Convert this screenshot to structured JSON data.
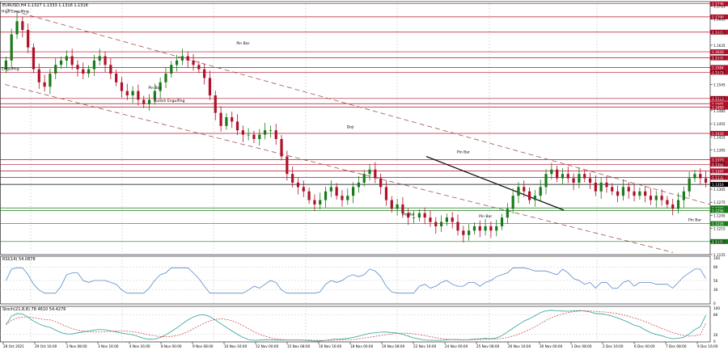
{
  "window": {
    "main_info": "EURUSD,H4  1.1327 1.1333 1.1316 1.1316",
    "rsi_info": "RSI(14) 54.0878",
    "stoch_info": "Stoch(21,8,8) 78.4610 54.4276"
  },
  "chart_data": {
    "type": "candlestick",
    "symbol": "EURUSD",
    "timeframe": "H4",
    "ylim": [
      1.1155,
      1.1735
    ],
    "price_ticks": [
      "1.1725",
      "1.1695",
      "1.1665",
      "1.1635",
      "1.1605",
      "1.1575",
      "1.1545",
      "1.1515",
      "1.1485",
      "1.1455",
      "1.1425",
      "1.1395",
      "1.1365",
      "1.1335",
      "1.1305",
      "1.1275",
      "1.1245",
      "1.1215",
      "1.1185",
      "1.1155"
    ],
    "time_labels": [
      "28 Oct 2021",
      "29 Oct 16:00",
      "2 Nov 08:00",
      "3 Nov 16:00",
      "4 Nov 16:00",
      "8 Nov 00:00",
      "9 Nov 08:00",
      "10 Nov 16:00",
      "12 Nov 00:00",
      "15 Nov 08:00",
      "16 Nov 16:00",
      "18 Nov 00:00",
      "19 Nov 08:00",
      "22 Nov 16:00",
      "24 Nov 00:00",
      "25 Nov 08:00",
      "26 Nov 16:00",
      "30 Nov 00:00",
      "1 Dec 08:00",
      "2 Dec 16:00",
      "6 Dec 00:00",
      "7 Dec 08:00",
      "9 Dec 16:00"
    ],
    "closes": [
      1.16,
      1.166,
      1.169,
      1.167,
      1.163,
      1.158,
      1.155,
      1.154,
      1.157,
      1.159,
      1.16,
      1.161,
      1.159,
      1.158,
      1.157,
      1.158,
      1.16,
      1.161,
      1.159,
      1.157,
      1.155,
      1.153,
      1.152,
      1.153,
      1.151,
      1.15,
      1.151,
      1.153,
      1.155,
      1.157,
      1.159,
      1.16,
      1.161,
      1.16,
      1.159,
      1.158,
      1.156,
      1.152,
      1.148,
      1.145,
      1.147,
      1.146,
      1.144,
      1.143,
      1.143,
      1.142,
      1.143,
      1.144,
      1.144,
      1.142,
      1.138,
      1.134,
      1.132,
      1.131,
      1.13,
      1.128,
      1.127,
      1.128,
      1.13,
      1.131,
      1.129,
      1.128,
      1.129,
      1.131,
      1.132,
      1.134,
      1.135,
      1.133,
      1.131,
      1.128,
      1.126,
      1.127,
      1.125,
      1.124,
      1.124,
      1.125,
      1.124,
      1.123,
      1.122,
      1.123,
      1.124,
      1.123,
      1.121,
      1.12,
      1.121,
      1.122,
      1.121,
      1.122,
      1.121,
      1.122,
      1.124,
      1.126,
      1.129,
      1.131,
      1.13,
      1.128,
      1.129,
      1.131,
      1.134,
      1.135,
      1.133,
      1.134,
      1.133,
      1.132,
      1.134,
      1.133,
      1.132,
      1.13,
      1.132,
      1.131,
      1.13,
      1.129,
      1.131,
      1.13,
      1.129,
      1.13,
      1.129,
      1.128,
      1.129,
      1.128,
      1.127,
      1.126,
      1.128,
      1.13,
      1.133,
      1.134,
      1.133,
      1.132
    ],
    "rsi": {
      "name": "RSI(14)",
      "value": 54.0878,
      "ylim": [
        0,
        100
      ],
      "ticks": [
        "100",
        "80",
        "50",
        "30",
        "0"
      ]
    },
    "stoch": {
      "name": "Stoch(21,8,8)",
      "main": 78.461,
      "signal": 54.4276,
      "ylim": [
        0,
        100
      ],
      "ticks": [
        "100",
        "80",
        "20",
        "0"
      ]
    },
    "resistance_levels": [
      {
        "price": 1.173,
        "label": "1.1730",
        "color": "#b0102a"
      },
      {
        "price": 1.17,
        "label": "1.1700",
        "color": "#b0102a"
      },
      {
        "price": 1.1665,
        "label": "1.1665",
        "color": "#b0102a"
      },
      {
        "price": 1.162,
        "label": "1.1620",
        "color": "#b0102a"
      },
      {
        "price": 1.1606,
        "label": "1.1606",
        "color": "#b0102a"
      },
      {
        "price": 1.1584,
        "label": "1.1584",
        "color": "#b0102a"
      },
      {
        "price": 1.1573,
        "label": "1.1573",
        "color": "#b0102a"
      },
      {
        "price": 1.1513,
        "label": "1.1513",
        "color": "#b0102a"
      },
      {
        "price": 1.1501,
        "label": "1.1501",
        "color": "#b0102a"
      },
      {
        "price": 1.1493,
        "label": "1.1493",
        "color": "#b0102a"
      },
      {
        "price": 1.1433,
        "label": "1.1433",
        "color": "#b0102a"
      },
      {
        "price": 1.1373,
        "label": "1.1373",
        "color": "#b0102a"
      },
      {
        "price": 1.1362,
        "label": "1.1362",
        "color": "#b0102a"
      },
      {
        "price": 1.1347,
        "label": "1.1347",
        "color": "#b0102a"
      },
      {
        "price": 1.1332,
        "label": "1.1332",
        "color": "#b0102a"
      }
    ],
    "current_price": {
      "price": 1.1316,
      "label": "1.1316",
      "color": "#000000"
    },
    "support_levels": [
      {
        "price": 1.1262,
        "label": "1.1262",
        "color": "#1a7a1a"
      },
      {
        "price": 1.1256,
        "label": "1.1256",
        "color": "#1a7a1a"
      },
      {
        "price": 1.1226,
        "label": "1.1226",
        "color": "#1a7a1a"
      },
      {
        "price": 1.1185,
        "label": "1.1185",
        "color": "#1a7a1a"
      }
    ],
    "annotations": [
      {
        "text": "High Engulfing",
        "x": 0,
        "price": 1.171
      },
      {
        "text": "Engulfing",
        "x": 0,
        "price": 1.1578
      },
      {
        "text": "Pin Bar",
        "x": 27,
        "price": 1.1535
      },
      {
        "text": "Bullish Engulfing",
        "x": 28,
        "price": 1.1505
      },
      {
        "text": "Pin Bar",
        "x": 43,
        "price": 1.1637
      },
      {
        "text": "Doji",
        "x": 63,
        "price": 1.1445
      },
      {
        "text": "Pin Bar",
        "x": 83,
        "price": 1.1388
      },
      {
        "text": "Pin Bar",
        "x": 73,
        "price": 1.1245
      },
      {
        "text": "Pin Bar",
        "x": 87,
        "price": 1.124
      },
      {
        "text": "Pin Bar",
        "x": 125,
        "price": 1.1232
      },
      {
        "text": "Pin Bar",
        "x": 141,
        "price": 1.125
      }
    ],
    "colors": {
      "bull": "#1a7a1a",
      "bear": "#b0102a",
      "channel": "#a05050",
      "rsi_line": "#5b8ac8",
      "stoch_main": "#2aa198",
      "stoch_signal": "#d05050",
      "grid": "#c8c8c8"
    }
  }
}
